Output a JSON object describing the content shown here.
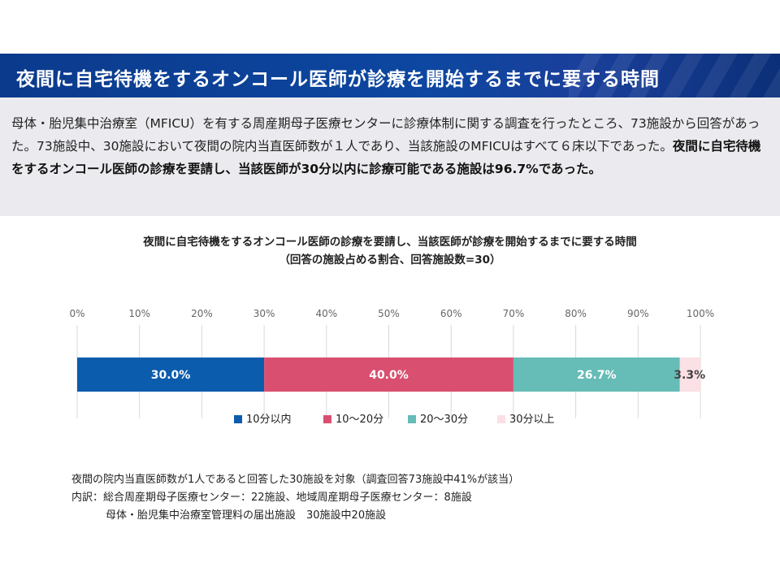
{
  "header": {
    "title": "夜間に自宅待機をするオンコール医師が診療を開始するまでに要する時間"
  },
  "summary": {
    "normal_text": "母体・胎児集中治療室（MFICU）を有する周産期母子医療センターに診療体制に関する調査を行ったところ、73施設から回答があった。73施設中、30施設において夜間の院内当直医師数が１人であり、当該施設のMFICUはすべて６床以下であった。",
    "bold_text": "夜間に自宅待機をするオンコール医師の診療を要請し、当該医師が30分以内に診療可能である施設は96.7%であった。"
  },
  "chart_data": {
    "type": "bar",
    "orientation": "horizontal-stacked",
    "title": "夜間に自宅待機をするオンコール医師の診療を要請し、当該医師が診療を開始するまでに要する時間",
    "subtitle": "（回答の施設占める割合、回答施設数=30）",
    "xlim": [
      0,
      100
    ],
    "ticks": [
      "0%",
      "10%",
      "20%",
      "30%",
      "40%",
      "50%",
      "60%",
      "70%",
      "80%",
      "90%",
      "100%"
    ],
    "grid": true,
    "legend_position": "bottom",
    "series": [
      {
        "name": "10分以内",
        "value": 30.0,
        "label": "30.0%",
        "color": "#0b5cad",
        "label_color": "#ffffff"
      },
      {
        "name": "10～20分",
        "value": 40.0,
        "label": "40.0%",
        "color": "#d94f70",
        "label_color": "#ffffff"
      },
      {
        "name": "20～30分",
        "value": 26.7,
        "label": "26.7%",
        "color": "#66bcb6",
        "label_color": "#ffffff"
      },
      {
        "name": "30分以上",
        "value": 3.3,
        "label": "3.3%",
        "color": "#fbe0e5",
        "label_color": "#444444"
      }
    ]
  },
  "notes": {
    "line1": "夜間の院内当直医師数が1人であると回答した30施設を対象（調査回答73施設中41%が該当）",
    "line2": "内訳：総合周産期母子医療センター：22施設、地域周産期母子医療センター：8施設",
    "line3": "母体・胎児集中治療室管理料の届出施設　30施設中20施設"
  }
}
